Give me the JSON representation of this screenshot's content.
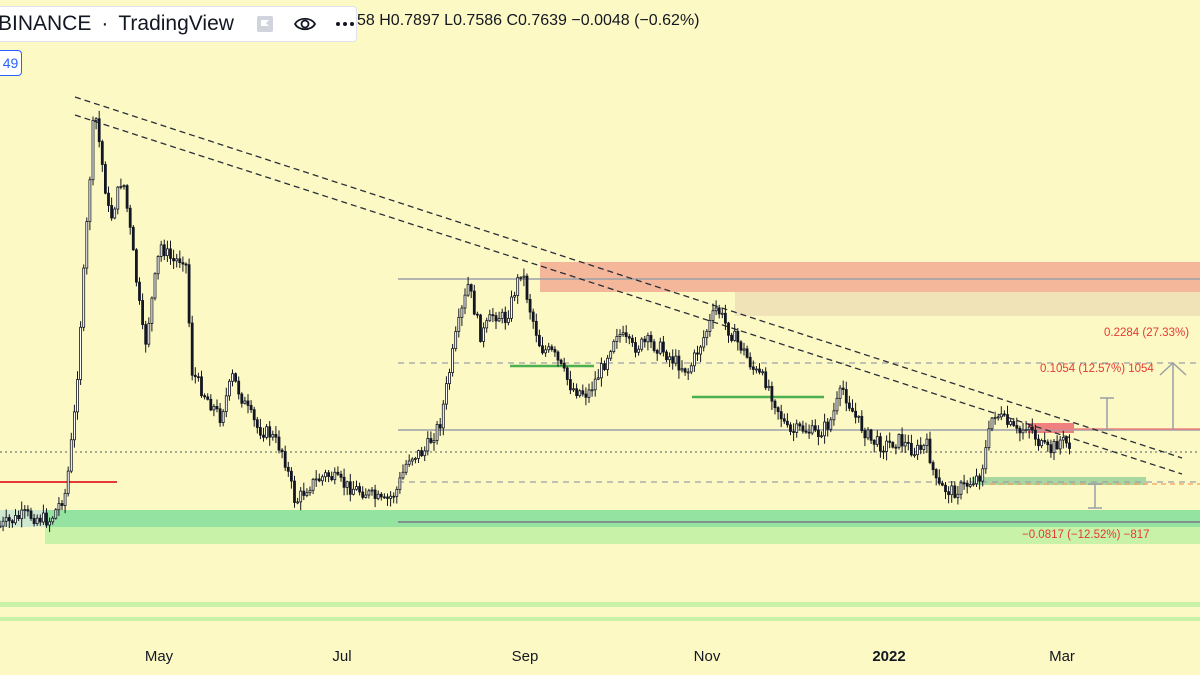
{
  "header": {
    "exchange": "BINANCE",
    "separator": "·",
    "platform": "TradingView",
    "icons": [
      "flag-icon",
      "eye-icon",
      "more-icon"
    ],
    "ohlc_text": "58 H0.7897 L0.7586 C0.7639 −0.0048 (−0.62%)",
    "badge_text": "49"
  },
  "x_axis": {
    "labels": [
      "May",
      "Jul",
      "Sep",
      "Nov",
      "2022",
      "Mar"
    ],
    "bold_label": "2022"
  },
  "annotations": {
    "target_high": "0.2284 (27.33%)",
    "target_mid": "0.1054 (12.57%) 1054",
    "downside": "−0.0817 (−12.52%) −817"
  },
  "colors": {
    "background": "#fdf9c4",
    "resistance_zone": "#f5b79a",
    "support_zone": "#95e3a0",
    "candle": "#131722",
    "support_line": "#4caf50",
    "red_level": "#e53935",
    "annotation_text": "#e53935",
    "gray_level": "#9aa0a6"
  },
  "chart_data": {
    "type": "candlestick",
    "symbol_exchange": "BINANCE",
    "x_axis_labels": [
      "May",
      "Jul",
      "Sep",
      "Nov",
      "2022",
      "Mar"
    ],
    "last_bar": {
      "high": 0.7897,
      "low": 0.7586,
      "close": 0.7639,
      "change": -0.0048,
      "change_pct": -0.62
    },
    "measurements": [
      {
        "label": "0.2284 (27.33%)",
        "change": 0.2284,
        "change_pct": 27.33
      },
      {
        "label": "0.1054 (12.57%) 1054",
        "change": 0.1054,
        "change_pct": 12.57
      },
      {
        "label": "−0.0817 (−12.52%) −817",
        "change": -0.0817,
        "change_pct": -12.52
      }
    ],
    "price_path": [
      [
        "2021-03-20",
        2.25
      ],
      [
        "2021-03-28",
        2.35
      ],
      [
        "2021-04-05",
        2.3
      ],
      [
        "2021-04-10",
        2.55
      ],
      [
        "2021-04-13",
        3.3
      ],
      [
        "2021-04-16",
        4.6
      ],
      [
        "2021-04-19",
        5.9
      ],
      [
        "2021-04-24",
        4.9
      ],
      [
        "2021-04-28",
        5.3
      ],
      [
        "2021-05-01",
        4.7
      ],
      [
        "2021-05-05",
        3.8
      ],
      [
        "2021-05-10",
        4.7
      ],
      [
        "2021-05-14",
        4.55
      ],
      [
        "2021-05-18",
        4.6
      ],
      [
        "2021-05-20",
        3.6
      ],
      [
        "2021-05-24",
        3.4
      ],
      [
        "2021-05-29",
        3.2
      ],
      [
        "2021-06-02",
        3.55
      ],
      [
        "2021-06-06",
        3.3
      ],
      [
        "2021-06-10",
        3.1
      ],
      [
        "2021-06-14",
        3.05
      ],
      [
        "2021-06-18",
        2.9
      ],
      [
        "2021-06-22",
        2.45
      ],
      [
        "2021-06-26",
        2.6
      ],
      [
        "2021-07-02",
        2.7
      ],
      [
        "2021-07-08",
        2.6
      ],
      [
        "2021-07-14",
        2.55
      ],
      [
        "2021-07-20",
        2.45
      ],
      [
        "2021-07-24",
        2.55
      ],
      [
        "2021-07-28",
        2.85
      ],
      [
        "2021-08-02",
        2.9
      ],
      [
        "2021-08-07",
        3.15
      ],
      [
        "2021-08-12",
        3.9
      ],
      [
        "2021-08-16",
        4.35
      ],
      [
        "2021-08-20",
        3.9
      ],
      [
        "2021-08-24",
        4.1
      ],
      [
        "2021-08-28",
        4.05
      ],
      [
        "2021-09-02",
        4.5
      ],
      [
        "2021-09-04",
        4.2
      ],
      [
        "2021-09-08",
        3.8
      ],
      [
        "2021-09-12",
        3.75
      ],
      [
        "2021-09-18",
        3.45
      ],
      [
        "2021-09-23",
        3.4
      ],
      [
        "2021-09-28",
        3.65
      ],
      [
        "2021-10-02",
        3.95
      ],
      [
        "2021-10-07",
        3.8
      ],
      [
        "2021-10-12",
        3.85
      ],
      [
        "2021-10-16",
        3.8
      ],
      [
        "2021-10-20",
        3.7
      ],
      [
        "2021-10-25",
        3.6
      ],
      [
        "2021-10-30",
        3.9
      ],
      [
        "2021-11-03",
        4.15
      ],
      [
        "2021-11-07",
        3.95
      ],
      [
        "2021-11-11",
        3.8
      ],
      [
        "2021-11-15",
        3.6
      ],
      [
        "2021-11-19",
        3.5
      ],
      [
        "2021-11-22",
        3.3
      ],
      [
        "2021-11-26",
        3.05
      ],
      [
        "2021-11-30",
        3.1
      ],
      [
        "2021-12-05",
        3.05
      ],
      [
        "2021-12-09",
        3.15
      ],
      [
        "2021-12-13",
        3.45
      ],
      [
        "2021-12-17",
        3.2
      ],
      [
        "2021-12-22",
        3.0
      ],
      [
        "2021-12-26",
        2.95
      ],
      [
        "2021-12-31",
        3.0
      ],
      [
        "2022-01-05",
        2.9
      ],
      [
        "2022-01-09",
        2.95
      ],
      [
        "2022-01-12",
        2.6
      ],
      [
        "2022-01-17",
        2.55
      ],
      [
        "2022-01-21",
        2.6
      ],
      [
        "2022-01-26",
        2.7
      ],
      [
        "2022-01-30",
        3.25
      ],
      [
        "2022-02-03",
        3.15
      ],
      [
        "2022-02-07",
        3.05
      ],
      [
        "2022-02-10",
        3.15
      ],
      [
        "2022-02-14",
        2.95
      ],
      [
        "2022-02-17",
        2.9
      ],
      [
        "2022-02-20",
        3.0
      ],
      [
        "2022-02-24",
        2.95
      ]
    ]
  }
}
